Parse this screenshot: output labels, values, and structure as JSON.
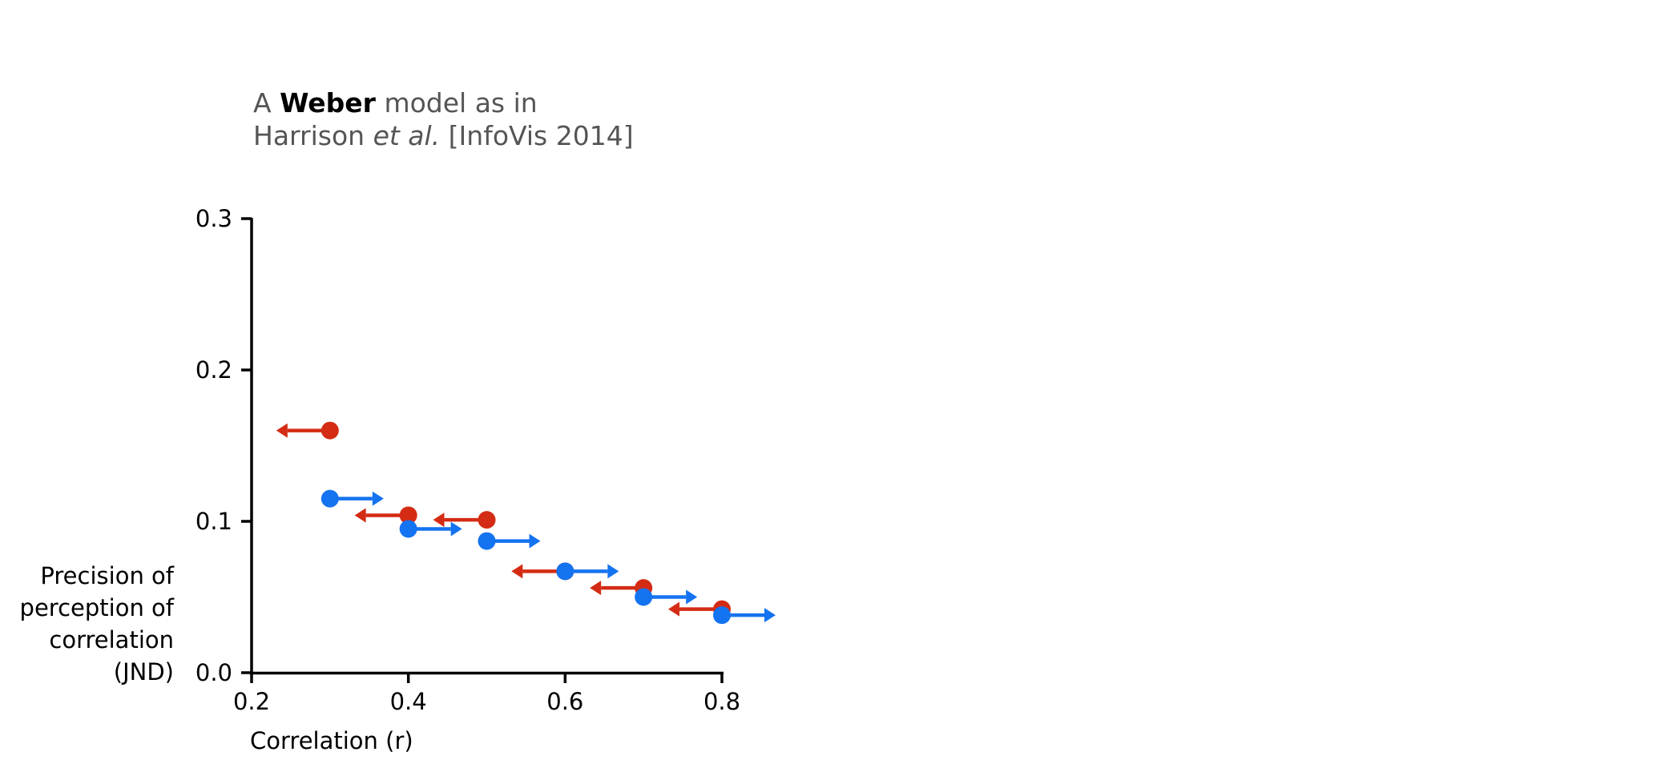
{
  "title": {
    "line1": {
      "pre": "A ",
      "bold": "Weber",
      "post": " model as in"
    },
    "line2": {
      "pre": "Harrison ",
      "italic": "et al.",
      "post": " [InfoVis 2014]"
    }
  },
  "chart_data": {
    "type": "scatter",
    "xlabel": "Correlation (r)",
    "ylabel_lines": [
      "Precision of",
      "perception of",
      "correlation",
      "(JND)"
    ],
    "xlim": [
      0.2,
      0.8
    ],
    "ylim": [
      0.0,
      0.3
    ],
    "xticks": [
      "0.2",
      "0.4",
      "0.6",
      "0.8"
    ],
    "yticks": [
      "0.0",
      "0.1",
      "0.2",
      "0.3"
    ],
    "grid": false,
    "legend": false,
    "colors": {
      "red": "#d42c14",
      "blue": "#1473f0"
    },
    "series": [
      {
        "color": "red",
        "arrow_direction": "left",
        "points": [
          {
            "x": 0.3,
            "y": 0.16
          },
          {
            "x": 0.4,
            "y": 0.104
          },
          {
            "x": 0.5,
            "y": 0.101
          },
          {
            "x": 0.6,
            "y": 0.067
          },
          {
            "x": 0.7,
            "y": 0.056
          },
          {
            "x": 0.8,
            "y": 0.042
          }
        ]
      },
      {
        "color": "blue",
        "arrow_direction": "right",
        "points": [
          {
            "x": 0.3,
            "y": 0.115
          },
          {
            "x": 0.4,
            "y": 0.095
          },
          {
            "x": 0.5,
            "y": 0.087
          },
          {
            "x": 0.6,
            "y": 0.067
          },
          {
            "x": 0.7,
            "y": 0.05
          },
          {
            "x": 0.8,
            "y": 0.038
          }
        ]
      }
    ]
  }
}
